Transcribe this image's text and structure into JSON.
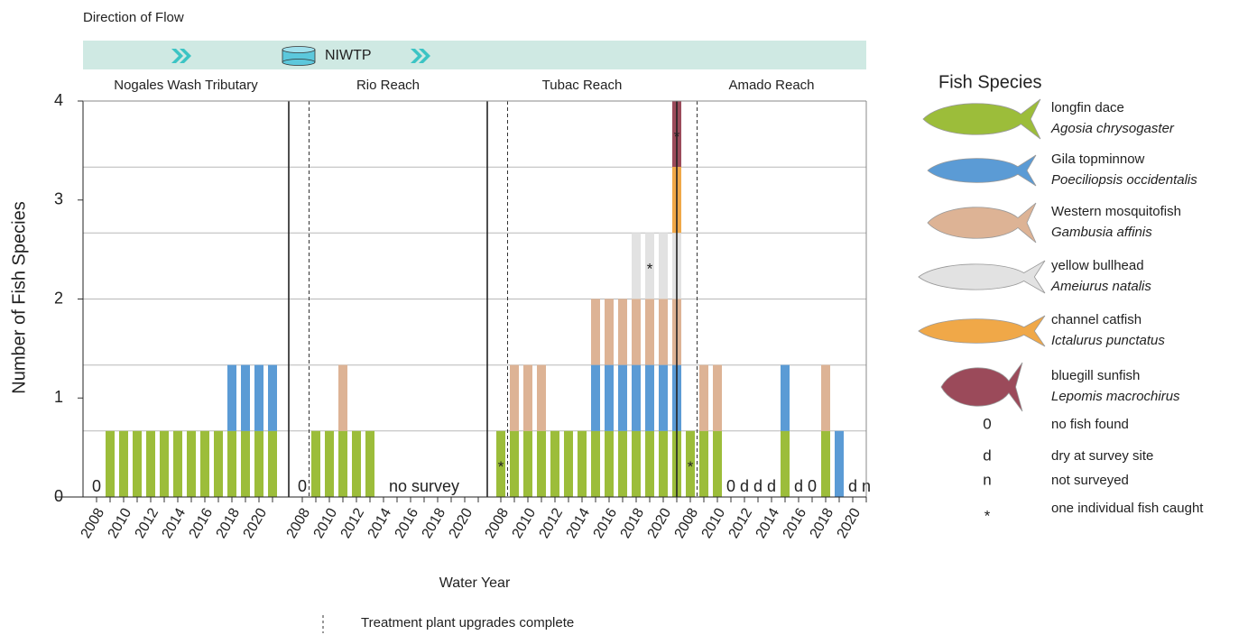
{
  "chart_data": {
    "type": "stacked-bar",
    "header": "Direction of Flow",
    "facility": "NIWTP",
    "y_label": "Number of Fish Species",
    "x_label": "Water Year",
    "ylim": [
      0,
      4
    ],
    "yticks": [
      0,
      1,
      2,
      3,
      4
    ],
    "grid_lines": [
      0.667,
      1.333,
      2,
      2.667,
      3.333,
      4
    ],
    "legend_title": "Fish Species",
    "species": [
      {
        "name": "longfin dace",
        "latin": "Agosia chrysogaster",
        "color": "#9cbd3a"
      },
      {
        "name": "Gila topminnow",
        "latin": "Poeciliopsis occidentalis",
        "color": "#5b9bd5"
      },
      {
        "name": "Western mosquitofish",
        "latin": "Gambusia affinis",
        "color": "#ddb395"
      },
      {
        "name": "yellow bullhead",
        "latin": "Ameiurus natalis",
        "color": "#e2e2e2"
      },
      {
        "name": "channel catfish",
        "latin": "Ictalurus punctatus",
        "color": "#f0a848"
      },
      {
        "name": "bluegill sunfish",
        "latin": "Lepomis macrochirus",
        "color": "#9b4a5a"
      }
    ],
    "symbols": [
      {
        "symbol": "0",
        "meaning": "no fish found"
      },
      {
        "symbol": "d",
        "meaning": "dry at survey site"
      },
      {
        "symbol": "n",
        "meaning": "not surveyed"
      },
      {
        "symbol": "*",
        "meaning": "one individual fish caught"
      }
    ],
    "upgrade_note": "Treatment plant upgrades complete",
    "panels": [
      {
        "title": "Nogales Wash Tributary",
        "upgrade_line": false,
        "categories": [
          2008,
          null,
          2010,
          null,
          2012,
          null,
          2014,
          null,
          2016,
          null,
          2018,
          null,
          2020,
          null
        ],
        "status": [
          "0",
          null,
          null,
          null,
          null,
          null,
          null,
          null,
          null,
          null,
          null,
          null,
          null,
          null
        ],
        "series": [
          {
            "values": [
              0,
              0.667,
              0.667,
              0.667,
              0.667,
              0.667,
              0.667,
              0.667,
              0.667,
              0.667,
              0.667,
              0.667,
              0.667,
              0.667
            ]
          },
          {
            "values": [
              0,
              0,
              0,
              0,
              0,
              0,
              0,
              0,
              0,
              0,
              0.667,
              0.667,
              0.667,
              0.667
            ]
          },
          {
            "values": [
              0,
              0,
              0,
              0,
              0,
              0,
              0,
              0,
              0,
              0,
              0,
              0,
              0,
              0
            ]
          },
          {
            "values": [
              0,
              0,
              0,
              0,
              0,
              0,
              0,
              0,
              0,
              0,
              0,
              0,
              0,
              0
            ]
          },
          {
            "values": [
              0,
              0,
              0,
              0,
              0,
              0,
              0,
              0,
              0,
              0,
              0,
              0,
              0,
              0
            ]
          },
          {
            "values": [
              0,
              0,
              0,
              0,
              0,
              0,
              0,
              0,
              0,
              0,
              0,
              0,
              0,
              0
            ]
          }
        ]
      },
      {
        "title": "Rio Reach",
        "upgrade_line": true,
        "categories": [
          2008,
          null,
          2010,
          null,
          2012,
          null,
          2014,
          null,
          2016,
          null,
          2018,
          null,
          2020,
          null
        ],
        "status": [
          "0",
          null,
          null,
          null,
          null,
          null,
          null,
          null,
          null,
          "no survey",
          null,
          null,
          null,
          null
        ],
        "series": [
          {
            "values": [
              0,
              0.667,
              0.667,
              0.667,
              0.667,
              0.667,
              0,
              0,
              0,
              0,
              0,
              0,
              0,
              0
            ]
          },
          {
            "values": [
              0,
              0,
              0,
              0,
              0,
              0,
              0,
              0,
              0,
              0,
              0,
              0,
              0,
              0
            ]
          },
          {
            "values": [
              0,
              0,
              0,
              0.667,
              0,
              0,
              0,
              0,
              0,
              0,
              0,
              0,
              0,
              0
            ]
          },
          {
            "values": [
              0,
              0,
              0,
              0,
              0,
              0,
              0,
              0,
              0,
              0,
              0,
              0,
              0,
              0
            ]
          },
          {
            "values": [
              0,
              0,
              0,
              0,
              0,
              0,
              0,
              0,
              0,
              0,
              0,
              0,
              0,
              0
            ]
          },
          {
            "values": [
              0,
              0,
              0,
              0,
              0,
              0,
              0,
              0,
              0,
              0,
              0,
              0,
              0,
              0
            ]
          }
        ]
      },
      {
        "title": "Tubac Reach",
        "upgrade_line": true,
        "categories": [
          2008,
          null,
          2010,
          null,
          2012,
          null,
          2014,
          null,
          2016,
          null,
          2018,
          null,
          2020,
          null
        ],
        "status": [
          null,
          null,
          null,
          null,
          null,
          null,
          null,
          null,
          null,
          null,
          null,
          null,
          null,
          null
        ],
        "series": [
          {
            "values": [
              0.667,
              0.667,
              0.667,
              0.667,
              0.667,
              0.667,
              0.667,
              0.667,
              0.667,
              0.667,
              0.667,
              0.667,
              0.667,
              0.667
            ],
            "markers": [
              "*",
              null,
              null,
              null,
              null,
              null,
              null,
              null,
              null,
              null,
              null,
              null,
              null,
              null
            ]
          },
          {
            "values": [
              0,
              0,
              0,
              0,
              0,
              0,
              0,
              0.667,
              0.667,
              0.667,
              0.667,
              0.667,
              0.667,
              0.667
            ]
          },
          {
            "values": [
              0,
              0.667,
              0.667,
              0.667,
              0,
              0,
              0,
              0.667,
              0.667,
              0.667,
              0.667,
              0.667,
              0.667,
              0.667
            ]
          },
          {
            "values": [
              0,
              0,
              0,
              0,
              0,
              0,
              0,
              0,
              0,
              0,
              0.667,
              0.667,
              0.667,
              0.667
            ],
            "markers": [
              null,
              null,
              null,
              null,
              null,
              null,
              null,
              null,
              null,
              null,
              null,
              "*",
              null,
              null
            ]
          },
          {
            "values": [
              0,
              0,
              0,
              0,
              0,
              0,
              0,
              0,
              0,
              0,
              0,
              0,
              0,
              0.667
            ]
          },
          {
            "values": [
              0,
              0,
              0,
              0,
              0,
              0,
              0,
              0,
              0,
              0,
              0,
              0,
              0,
              0.667
            ],
            "markers": [
              null,
              null,
              null,
              null,
              null,
              null,
              null,
              null,
              null,
              null,
              null,
              null,
              null,
              "*"
            ]
          }
        ]
      },
      {
        "title": "Amado Reach",
        "upgrade_line": true,
        "categories": [
          2008,
          null,
          2010,
          null,
          2012,
          null,
          2014,
          null,
          2016,
          null,
          2018,
          null,
          2020,
          null
        ],
        "status": [
          null,
          null,
          null,
          "0",
          "d",
          "d",
          "d",
          null,
          "d",
          "0",
          null,
          null,
          "d",
          "n"
        ],
        "series": [
          {
            "values": [
              0.667,
              0.667,
              0.667,
              0,
              0,
              0,
              0,
              0.667,
              0,
              0,
              0.667,
              0,
              0,
              0
            ],
            "markers": [
              "*",
              null,
              null,
              null,
              null,
              null,
              null,
              null,
              null,
              null,
              null,
              null,
              null,
              null
            ]
          },
          {
            "values": [
              0,
              0,
              0,
              0,
              0,
              0,
              0,
              0.667,
              0,
              0,
              0,
              0.667,
              0,
              0
            ]
          },
          {
            "values": [
              0,
              0.667,
              0.667,
              0,
              0,
              0,
              0,
              0,
              0,
              0,
              0.667,
              0,
              0,
              0
            ]
          },
          {
            "values": [
              0,
              0,
              0,
              0,
              0,
              0,
              0,
              0,
              0,
              0,
              0,
              0,
              0,
              0
            ]
          },
          {
            "values": [
              0,
              0,
              0,
              0,
              0,
              0,
              0,
              0,
              0,
              0,
              0,
              0,
              0,
              0
            ]
          },
          {
            "values": [
              0,
              0,
              0,
              0,
              0,
              0,
              0,
              0,
              0,
              0,
              0,
              0,
              0,
              0
            ]
          }
        ]
      }
    ]
  }
}
